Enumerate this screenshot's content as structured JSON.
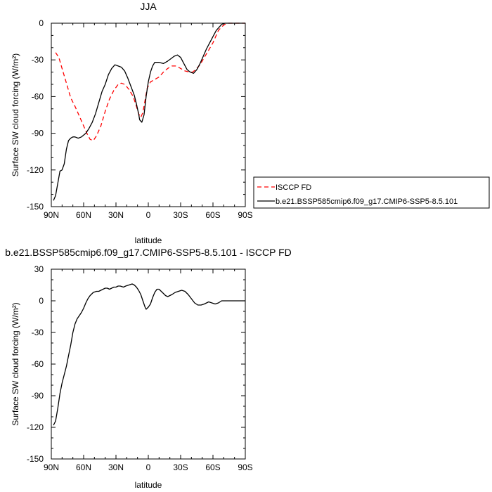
{
  "chart_data": [
    {
      "type": "line",
      "title": "JJA",
      "xlabel": "latitude",
      "ylabel": "Surface SW cloud forcing (W/m²)",
      "x_ticks": [
        "90N",
        "60N",
        "30N",
        "0",
        "30S",
        "60S",
        "90S"
      ],
      "xlim": [
        90,
        -90
      ],
      "ylim": [
        -150,
        0
      ],
      "y_ticks": [
        "0",
        "-30",
        "-60",
        "-90",
        "-120",
        "-150"
      ],
      "legend_position": "right",
      "series": [
        {
          "name": "ISCCP FD",
          "color": "#ff0000",
          "dash": "dashed",
          "points": [
            [
              86,
              -24
            ],
            [
              83,
              -28
            ],
            [
              80,
              -37
            ],
            [
              76,
              -49
            ],
            [
              72,
              -61
            ],
            [
              68,
              -68
            ],
            [
              64,
              -76
            ],
            [
              60,
              -84
            ],
            [
              57,
              -90
            ],
            [
              54,
              -95
            ],
            [
              51,
              -96
            ],
            [
              48,
              -92
            ],
            [
              44,
              -84
            ],
            [
              40,
              -72
            ],
            [
              36,
              -62
            ],
            [
              32,
              -55
            ],
            [
              28,
              -50
            ],
            [
              25,
              -49
            ],
            [
              22,
              -50
            ],
            [
              18,
              -54
            ],
            [
              14,
              -60
            ],
            [
              11,
              -68
            ],
            [
              9,
              -74
            ],
            [
              7,
              -77
            ],
            [
              5,
              -73
            ],
            [
              3,
              -63
            ],
            [
              1,
              -53
            ],
            [
              -2,
              -48
            ],
            [
              -6,
              -46
            ],
            [
              -10,
              -44
            ],
            [
              -14,
              -40
            ],
            [
              -18,
              -37
            ],
            [
              -22,
              -35
            ],
            [
              -26,
              -35
            ],
            [
              -30,
              -37
            ],
            [
              -34,
              -39
            ],
            [
              -38,
              -40
            ],
            [
              -41,
              -40
            ],
            [
              -44,
              -38
            ],
            [
              -48,
              -34
            ],
            [
              -52,
              -28
            ],
            [
              -56,
              -22
            ],
            [
              -60,
              -16
            ],
            [
              -63,
              -10
            ],
            [
              -65,
              -6
            ],
            [
              -68,
              -3
            ],
            [
              -71,
              -1
            ],
            [
              -74,
              0
            ],
            [
              -80,
              0
            ],
            [
              -90,
              0
            ]
          ]
        },
        {
          "name": "b.e21.BSSP585cmip6.f09_g17.CMIP6-SSP5-8.5.101",
          "color": "#000000",
          "dash": "solid",
          "points": [
            [
              88,
              -145
            ],
            [
              86,
              -141
            ],
            [
              84,
              -131
            ],
            [
              82,
              -121
            ],
            [
              80,
              -120
            ],
            [
              78,
              -115
            ],
            [
              76,
              -103
            ],
            [
              74,
              -96
            ],
            [
              72,
              -94
            ],
            [
              70,
              -93
            ],
            [
              68,
              -93
            ],
            [
              65,
              -94
            ],
            [
              62,
              -93
            ],
            [
              58,
              -90
            ],
            [
              55,
              -86
            ],
            [
              52,
              -81
            ],
            [
              49,
              -74
            ],
            [
              46,
              -65
            ],
            [
              43,
              -56
            ],
            [
              40,
              -50
            ],
            [
              37,
              -42
            ],
            [
              34,
              -37
            ],
            [
              31,
              -34
            ],
            [
              28,
              -35
            ],
            [
              25,
              -36
            ],
            [
              22,
              -39
            ],
            [
              19,
              -45
            ],
            [
              16,
              -52
            ],
            [
              13,
              -59
            ],
            [
              11,
              -66
            ],
            [
              9,
              -74
            ],
            [
              8,
              -79
            ],
            [
              6,
              -81
            ],
            [
              4,
              -75
            ],
            [
              2,
              -60
            ],
            [
              0,
              -48
            ],
            [
              -2,
              -40
            ],
            [
              -4,
              -35
            ],
            [
              -6,
              -32
            ],
            [
              -10,
              -32
            ],
            [
              -14,
              -33
            ],
            [
              -18,
              -31
            ],
            [
              -21,
              -29
            ],
            [
              -24,
              -27
            ],
            [
              -27,
              -26
            ],
            [
              -30,
              -28
            ],
            [
              -33,
              -33
            ],
            [
              -36,
              -38
            ],
            [
              -39,
              -40
            ],
            [
              -42,
              -41
            ],
            [
              -45,
              -38
            ],
            [
              -48,
              -33
            ],
            [
              -51,
              -27
            ],
            [
              -54,
              -21
            ],
            [
              -57,
              -16
            ],
            [
              -60,
              -11
            ],
            [
              -63,
              -6
            ],
            [
              -66,
              -3
            ],
            [
              -68,
              -1
            ],
            [
              -71,
              0
            ],
            [
              -90,
              0
            ]
          ]
        }
      ]
    },
    {
      "type": "line",
      "title": "b.e21.BSSP585cmip6.f09_g17.CMIP6-SSP5-8.5.101 - ISCCP FD",
      "xlabel": "latitude",
      "ylabel": "Surface SW cloud forcing (W/m²)",
      "x_ticks": [
        "90N",
        "60N",
        "30N",
        "0",
        "30S",
        "60S",
        "90S"
      ],
      "xlim": [
        90,
        -90
      ],
      "ylim": [
        -150,
        30
      ],
      "y_ticks": [
        "30",
        "0",
        "-30",
        "-60",
        "-90",
        "-120",
        "-150"
      ],
      "series": [
        {
          "color": "#000000",
          "dash": "solid",
          "points": [
            [
              88,
              -118
            ],
            [
              86,
              -114
            ],
            [
              84,
              -102
            ],
            [
              82,
              -88
            ],
            [
              80,
              -78
            ],
            [
              78,
              -70
            ],
            [
              76,
              -62
            ],
            [
              74,
              -52
            ],
            [
              72,
              -42
            ],
            [
              70,
              -30
            ],
            [
              68,
              -22
            ],
            [
              66,
              -17
            ],
            [
              64,
              -14
            ],
            [
              62,
              -11
            ],
            [
              60,
              -7
            ],
            [
              58,
              -2
            ],
            [
              56,
              2
            ],
            [
              54,
              5
            ],
            [
              51,
              8
            ],
            [
              48,
              9
            ],
            [
              46,
              9
            ],
            [
              44,
              10
            ],
            [
              42,
              11
            ],
            [
              40,
              12
            ],
            [
              38,
              12
            ],
            [
              36,
              11
            ],
            [
              34,
              12
            ],
            [
              32,
              13
            ],
            [
              30,
              13
            ],
            [
              28,
              14
            ],
            [
              26,
              14
            ],
            [
              23,
              13
            ],
            [
              21,
              14
            ],
            [
              18,
              15
            ],
            [
              15,
              16
            ],
            [
              13,
              15
            ],
            [
              11,
              13
            ],
            [
              9,
              10
            ],
            [
              7,
              6
            ],
            [
              5,
              0
            ],
            [
              3,
              -6
            ],
            [
              2,
              -8
            ],
            [
              0,
              -6
            ],
            [
              -2,
              -3
            ],
            [
              -4,
              3
            ],
            [
              -6,
              8
            ],
            [
              -8,
              11
            ],
            [
              -10,
              11
            ],
            [
              -12,
              9
            ],
            [
              -14,
              7
            ],
            [
              -16,
              5
            ],
            [
              -18,
              4
            ],
            [
              -20,
              5
            ],
            [
              -22,
              6
            ],
            [
              -25,
              8
            ],
            [
              -28,
              9
            ],
            [
              -31,
              10
            ],
            [
              -34,
              9
            ],
            [
              -37,
              6
            ],
            [
              -40,
              2
            ],
            [
              -43,
              -2
            ],
            [
              -46,
              -4
            ],
            [
              -49,
              -4
            ],
            [
              -52,
              -3
            ],
            [
              -56,
              -1
            ],
            [
              -59,
              -2
            ],
            [
              -62,
              -3
            ],
            [
              -65,
              -2
            ],
            [
              -68,
              0
            ],
            [
              -71,
              0
            ],
            [
              -90,
              0
            ]
          ]
        }
      ]
    }
  ]
}
